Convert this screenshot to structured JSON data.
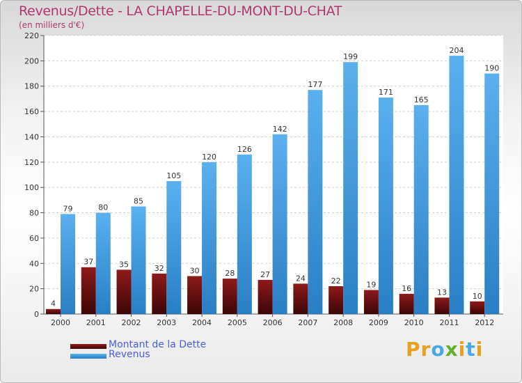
{
  "chart_data": {
    "type": "bar",
    "title": "Revenus/Dette - LA CHAPELLE-DU-MONT-DU-CHAT",
    "subtitle": "(en milliers d'€)",
    "categories": [
      "2000",
      "2001",
      "2002",
      "2003",
      "2004",
      "2005",
      "2006",
      "2007",
      "2008",
      "2009",
      "2010",
      "2011",
      "2012"
    ],
    "series": [
      {
        "name": "Montant de la Dette",
        "color": "#7a1010",
        "values": [
          4,
          37,
          35,
          32,
          30,
          28,
          27,
          24,
          22,
          19,
          16,
          13,
          10
        ]
      },
      {
        "name": "Revenus",
        "color": "#3d98dc",
        "values": [
          79,
          80,
          85,
          105,
          120,
          126,
          142,
          177,
          199,
          171,
          165,
          204,
          190
        ]
      }
    ],
    "ylim": [
      0,
      220
    ],
    "yticks": [
      0,
      20,
      40,
      60,
      80,
      100,
      120,
      140,
      160,
      180,
      200,
      220
    ],
    "grid": true,
    "legend": "bottom-left",
    "data_labels": true
  },
  "logo": {
    "letters": [
      "P",
      "r",
      "o",
      "x",
      "i",
      "t",
      "i"
    ],
    "colors": [
      "#e8a020",
      "#e8a020",
      "#48a8e0",
      "#60b030",
      "#e8a020",
      "#48a8e0",
      "#e8a020"
    ]
  }
}
